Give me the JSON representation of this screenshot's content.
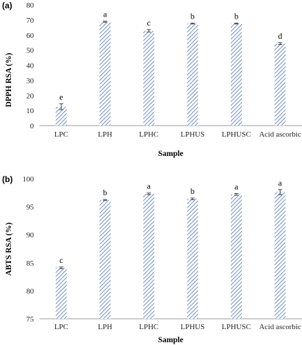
{
  "colors": {
    "bar_hatch": "#4a6fb5",
    "bar_fill": "#ffffff",
    "error_bar": "#444444",
    "axis": "#999999"
  },
  "chart_data": [
    {
      "panel_label": "(a)",
      "type": "bar",
      "categories": [
        "LPC",
        "LPH",
        "LPHC",
        "LPHUS",
        "LPHUSC",
        "Acid ascorbic"
      ],
      "values": [
        12.5,
        68.8,
        62.8,
        67.6,
        67.6,
        54.3
      ],
      "errors": [
        2.0,
        0.4,
        0.8,
        0.3,
        0.3,
        0.6
      ],
      "significance": [
        "e",
        "a",
        "c",
        "b",
        "b",
        "d"
      ],
      "xlabel": "Sample",
      "ylabel": "DPPH RSA (%)",
      "ylim": [
        0,
        80
      ],
      "yticks": [
        0,
        10,
        20,
        30,
        40,
        50,
        60,
        70,
        80
      ],
      "grid": false,
      "bar_pattern": "diagonal-hatch"
    },
    {
      "panel_label": "(b)",
      "type": "bar",
      "categories": [
        "LPC",
        "LPH",
        "LPHC",
        "LPHUS",
        "LPHUSC",
        "Acid ascorbic"
      ],
      "values": [
        84.1,
        96.2,
        97.3,
        96.4,
        97.2,
        97.6
      ],
      "errors": [
        0.15,
        0.1,
        0.15,
        0.15,
        0.15,
        0.45
      ],
      "significance": [
        "c",
        "b",
        "a",
        "b",
        "a",
        "a"
      ],
      "xlabel": "Sample",
      "ylabel": "ABTS RSA (%)",
      "ylim": [
        75,
        100
      ],
      "yticks": [
        75,
        80,
        85,
        90,
        95,
        100
      ],
      "grid": false,
      "bar_pattern": "diagonal-hatch"
    }
  ]
}
